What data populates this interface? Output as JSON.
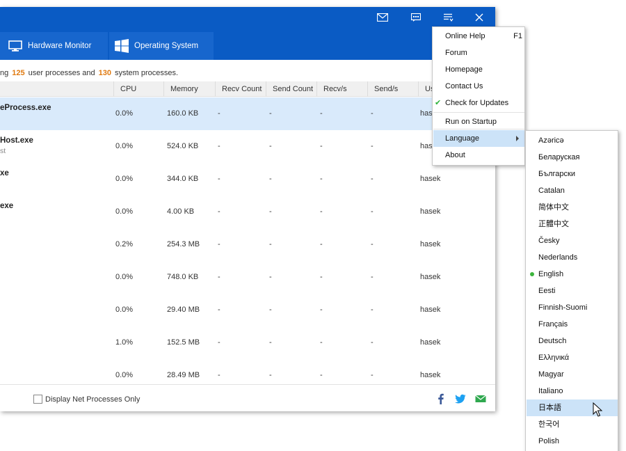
{
  "titlebar": {
    "buttons": [
      {
        "name": "mail-icon"
      },
      {
        "name": "feedback-icon"
      },
      {
        "name": "menu-icon"
      },
      {
        "name": "close-icon"
      }
    ]
  },
  "tabs": [
    {
      "label": "Hardware Monitor",
      "icon": "monitor-icon"
    },
    {
      "label": "Operating System",
      "icon": "windows-icon"
    }
  ],
  "summary": {
    "prefix": "ng",
    "user_count": "125",
    "middle": "user processes and",
    "system_count": "130",
    "suffix": "system processes."
  },
  "columns": [
    "CPU",
    "Memory",
    "Recv Count",
    "Send Count",
    "Recv/s",
    "Send/s",
    "Us"
  ],
  "rows": [
    {
      "name": "eProcess.exe",
      "sub": "",
      "cpu": "0.0%",
      "memory": "160.0 KB",
      "recv_count": "-",
      "send_count": "-",
      "recv_s": "-",
      "send_s": "-",
      "user": "hasek",
      "selected": true
    },
    {
      "name": "Host.exe",
      "sub": "st",
      "cpu": "0.0%",
      "memory": "524.0 KB",
      "recv_count": "-",
      "send_count": "-",
      "recv_s": "-",
      "send_s": "-",
      "user": "hasek",
      "selected": false
    },
    {
      "name": "xe",
      "sub": "",
      "cpu": "0.0%",
      "memory": "344.0 KB",
      "recv_count": "-",
      "send_count": "-",
      "recv_s": "-",
      "send_s": "-",
      "user": "hasek",
      "selected": false
    },
    {
      "name": "exe",
      "sub": "",
      "cpu": "0.0%",
      "memory": "4.00 KB",
      "recv_count": "-",
      "send_count": "-",
      "recv_s": "-",
      "send_s": "-",
      "user": "hasek",
      "selected": false
    },
    {
      "name": "",
      "sub": "",
      "cpu": "0.2%",
      "memory": "254.3 MB",
      "recv_count": "-",
      "send_count": "-",
      "recv_s": "-",
      "send_s": "-",
      "user": "hasek",
      "selected": false
    },
    {
      "name": "",
      "sub": "",
      "cpu": "0.0%",
      "memory": "748.0 KB",
      "recv_count": "-",
      "send_count": "-",
      "recv_s": "-",
      "send_s": "-",
      "user": "hasek",
      "selected": false
    },
    {
      "name": "",
      "sub": "",
      "cpu": "0.0%",
      "memory": "29.40 MB",
      "recv_count": "-",
      "send_count": "-",
      "recv_s": "-",
      "send_s": "-",
      "user": "hasek",
      "selected": false
    },
    {
      "name": "",
      "sub": "",
      "cpu": "1.0%",
      "memory": "152.5 MB",
      "recv_count": "-",
      "send_count": "-",
      "recv_s": "-",
      "send_s": "-",
      "user": "hasek",
      "selected": false
    },
    {
      "name": "",
      "sub": "",
      "cpu": "0.0%",
      "memory": "28.49 MB",
      "recv_count": "-",
      "send_count": "-",
      "recv_s": "-",
      "send_s": "-",
      "user": "hasek",
      "selected": false
    }
  ],
  "footer": {
    "net_only_label": "Display Net Processes Only",
    "net_only_checked": false,
    "social": [
      {
        "name": "facebook-icon",
        "color": "#3b5998"
      },
      {
        "name": "twitter-icon",
        "color": "#1da1f2"
      },
      {
        "name": "mail-share-icon",
        "color": "#2fa84f"
      }
    ]
  },
  "main_menu": {
    "items": [
      {
        "label": "Online Help",
        "shortcut": "F1"
      },
      {
        "label": "Forum",
        "shortcut": ""
      },
      {
        "label": "Homepage",
        "shortcut": ""
      },
      {
        "label": "Contact Us",
        "shortcut": ""
      },
      {
        "label": "Check for Updates",
        "shortcut": "",
        "checked": true
      },
      {
        "label": "Run on Startup",
        "shortcut": ""
      },
      {
        "label": "Language",
        "shortcut": "",
        "submenu": true,
        "highlighted": true
      },
      {
        "label": "About",
        "shortcut": ""
      }
    ]
  },
  "language_menu": {
    "items": [
      {
        "label": "Azəricə"
      },
      {
        "label": "Беларуская"
      },
      {
        "label": "Български"
      },
      {
        "label": "Catalan"
      },
      {
        "label": "简体中文"
      },
      {
        "label": "正體中文"
      },
      {
        "label": "Česky"
      },
      {
        "label": "Nederlands"
      },
      {
        "label": "English",
        "selected": true
      },
      {
        "label": "Eesti"
      },
      {
        "label": "Finnish-Suomi"
      },
      {
        "label": "Français"
      },
      {
        "label": "Deutsch"
      },
      {
        "label": "Ελληνικά"
      },
      {
        "label": "Magyar"
      },
      {
        "label": "Italiano"
      },
      {
        "label": "日本語",
        "highlighted": true
      },
      {
        "label": "한국어"
      },
      {
        "label": "Polish"
      }
    ]
  },
  "colors": {
    "titlebar": "#0a5bc4",
    "tab": "#1766cd",
    "count_highlight": "#e07a10",
    "selection": "#d9eafb",
    "menu_highlight": "#cce3f8",
    "check": "#2db33b"
  }
}
